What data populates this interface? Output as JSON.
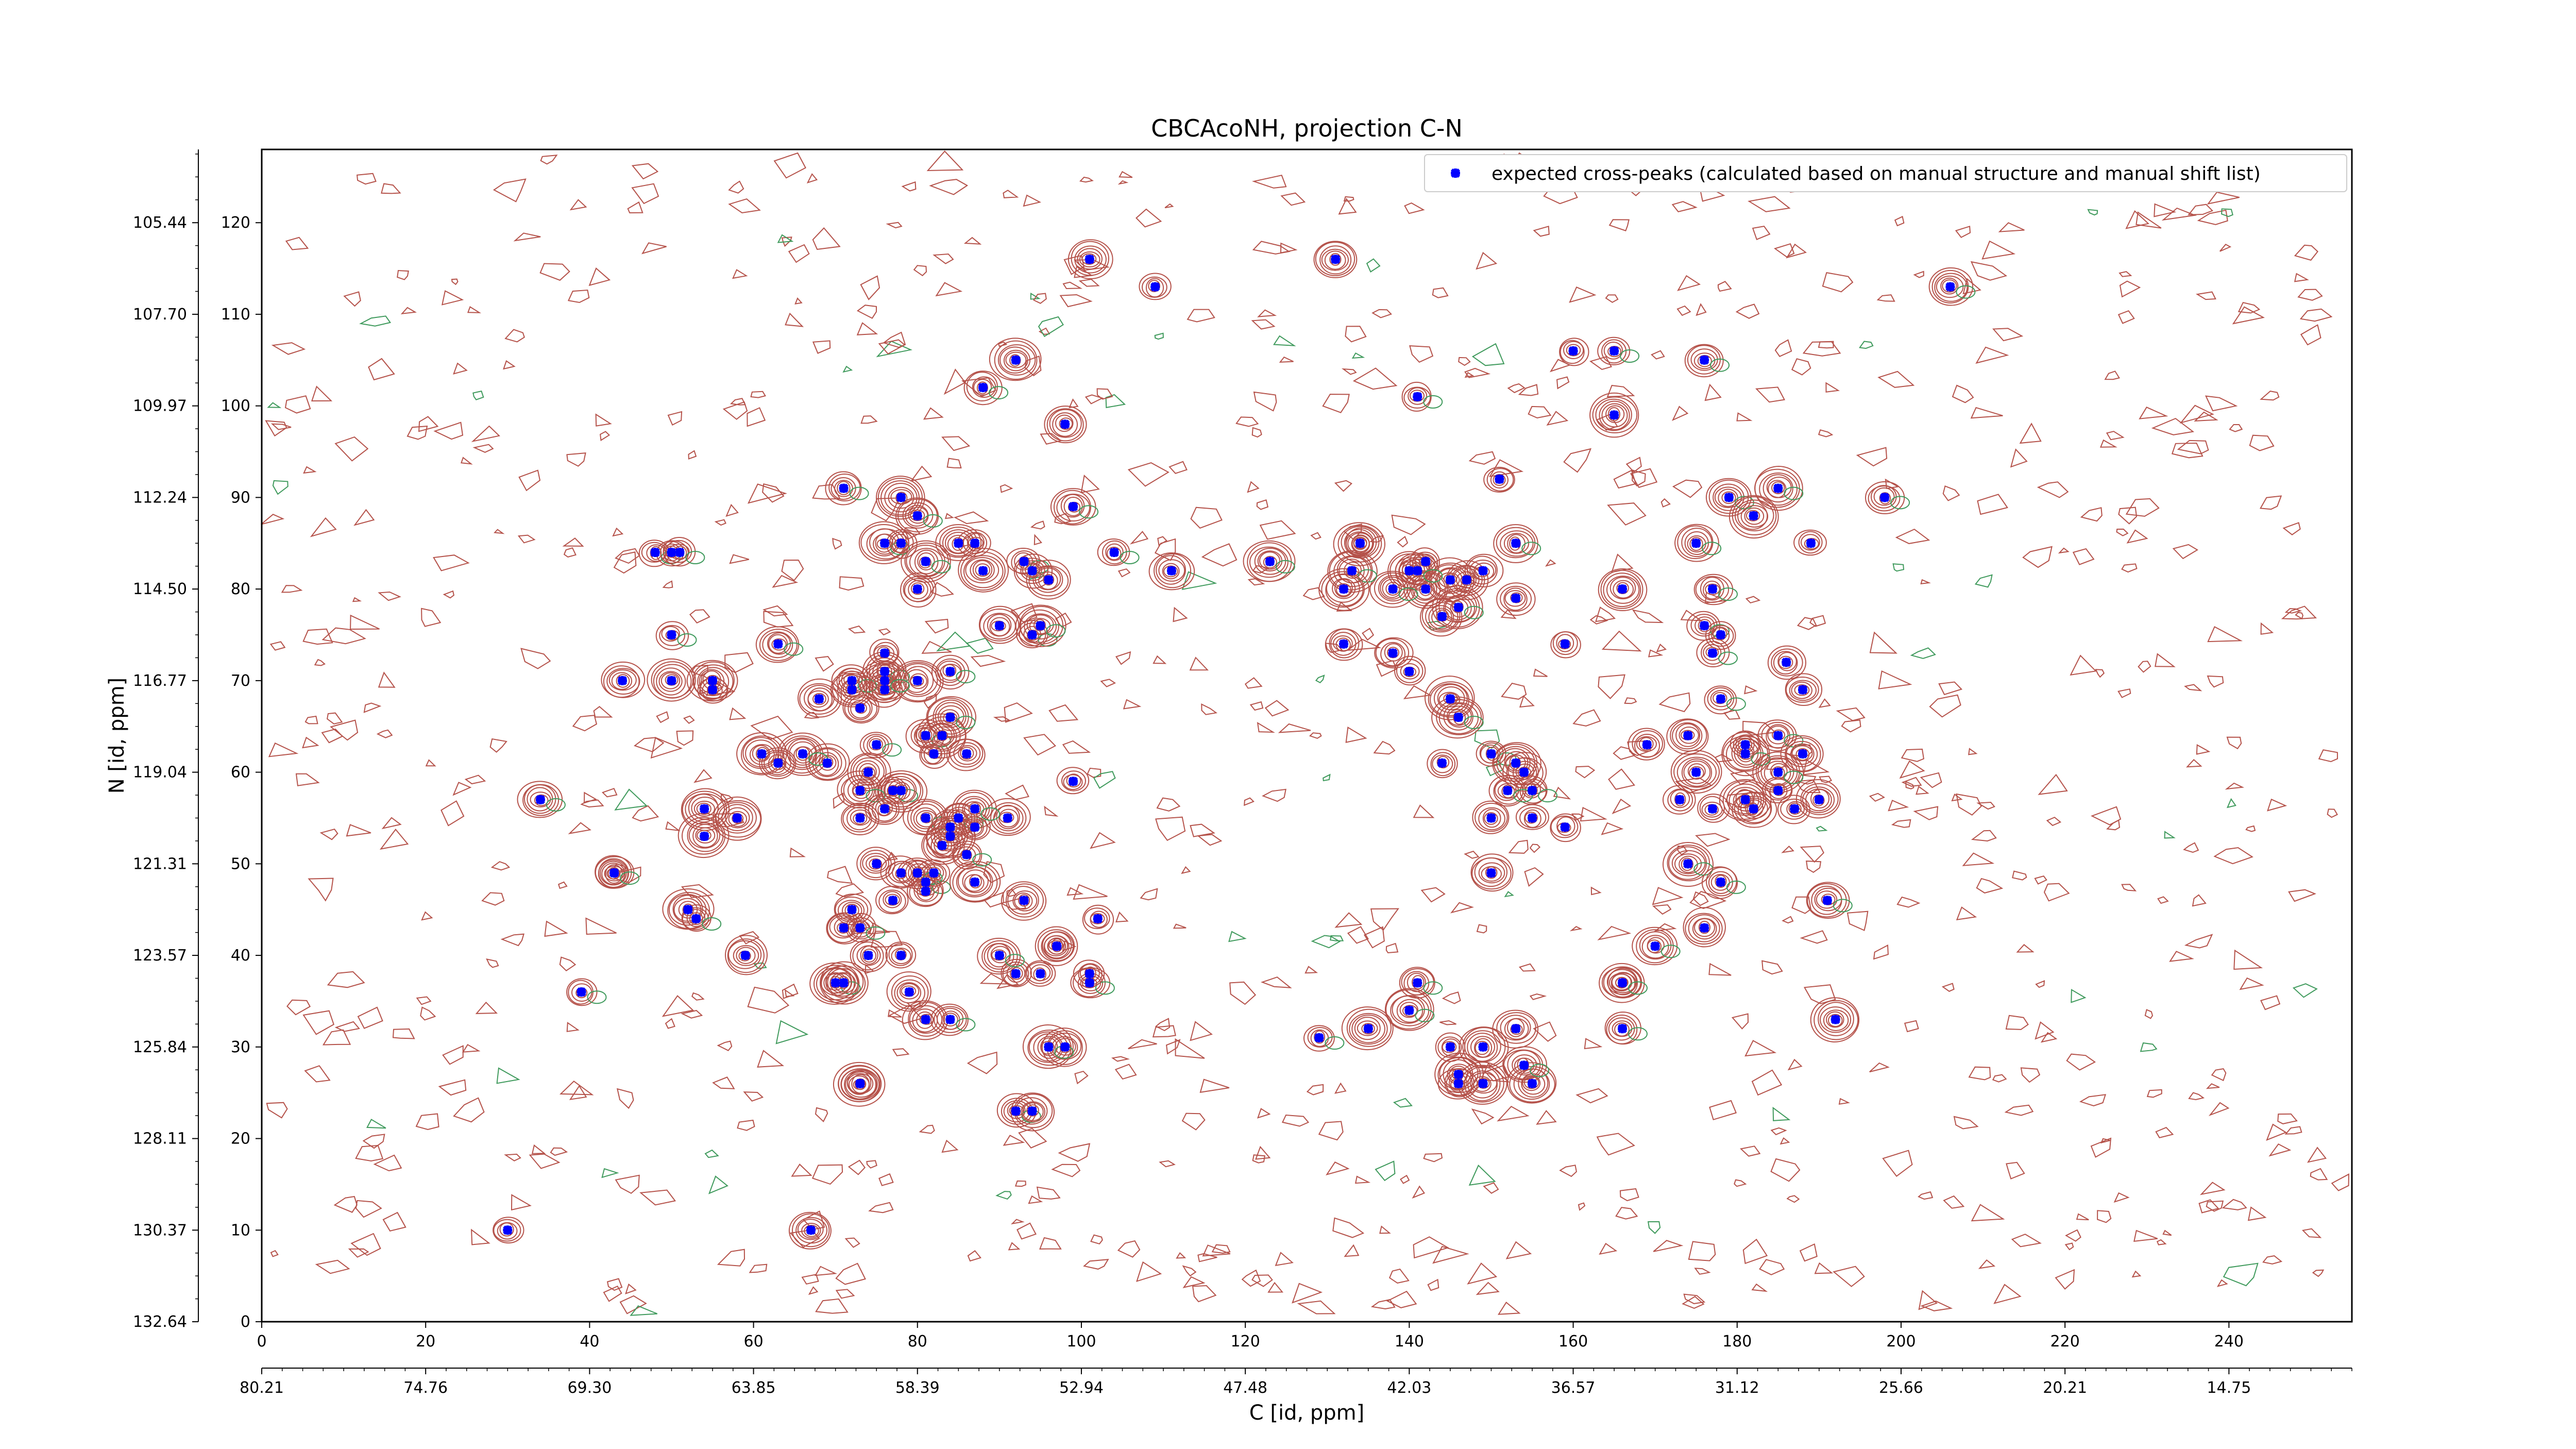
{
  "chart_data": {
    "type": "scatter",
    "title": "CBCAcoNH, projection C-N",
    "xlabel": "C [id, ppm]",
    "ylabel": "N [id, ppm]",
    "xlim": [
      0,
      255
    ],
    "ylim": [
      0,
      128
    ],
    "x_index_ticks": [
      0,
      20,
      40,
      60,
      80,
      100,
      120,
      140,
      160,
      180,
      200,
      220,
      240
    ],
    "x_ppm_ticks": [
      "80.21",
      "74.76",
      "69.30",
      "63.85",
      "58.39",
      "52.94",
      "47.48",
      "42.03",
      "36.57",
      "31.12",
      "25.66",
      "20.21",
      "14.75"
    ],
    "y_index_ticks": [
      0,
      10,
      20,
      30,
      40,
      50,
      60,
      70,
      80,
      90,
      100,
      110,
      120
    ],
    "y_ppm_ticks": [
      "132.64",
      "130.37",
      "128.11",
      "125.84",
      "123.57",
      "121.31",
      "119.04",
      "116.77",
      "114.50",
      "112.24",
      "109.97",
      "107.70",
      "105.44"
    ],
    "grid": false,
    "legend_position": "top-right",
    "contour_colors": {
      "positive": "#b5524a",
      "negative": "#3f9a5c"
    },
    "series": [
      {
        "name": "expected cross-peaks (calculated based on manual structure and manual shift list)",
        "color": "#0000ff",
        "x": [
          101,
          109,
          131,
          206,
          92,
          88,
          98,
          165,
          141,
          165,
          176,
          71,
          78,
          76,
          78,
          48,
          50,
          51,
          85,
          87,
          80,
          93,
          94,
          96,
          88,
          99,
          104,
          123,
          81,
          80,
          94,
          138,
          149,
          151,
          153,
          146,
          142,
          144,
          140,
          147,
          153,
          179,
          182,
          185,
          198,
          189,
          175,
          177,
          166,
          176,
          178,
          50,
          55,
          63,
          50,
          44,
          55,
          111,
          132,
          145,
          142,
          141,
          138,
          134,
          133,
          132,
          134,
          160,
          177,
          186,
          169,
          174,
          175,
          173,
          182,
          181,
          185,
          187,
          190,
          159,
          159,
          178,
          181,
          188,
          177,
          150,
          153,
          150,
          155,
          154,
          155,
          152,
          144,
          146,
          145,
          140,
          101,
          176,
          174,
          178,
          185,
          185,
          181,
          188,
          61,
          76,
          73,
          72,
          76,
          84,
          80,
          90,
          95,
          76,
          68,
          72,
          76,
          75,
          81,
          83,
          84,
          77,
          69,
          74,
          66,
          63,
          78,
          86,
          82,
          99,
          73,
          58,
          81,
          84,
          83,
          84,
          76,
          85,
          91,
          87,
          87,
          81,
          82,
          78,
          93,
          87,
          86,
          75,
          80,
          73,
          81,
          77,
          78,
          70,
          71,
          72,
          73,
          74,
          92,
          95,
          98,
          79,
          81,
          84,
          90,
          97,
          97,
          102,
          39,
          43,
          43,
          34,
          52,
          53,
          59,
          54,
          54,
          71,
          73,
          73,
          101,
          141,
          146,
          149,
          191,
          30,
          67,
          170,
          192,
          166,
          166,
          166,
          135,
          140,
          150,
          146,
          155,
          153,
          149,
          145,
          129,
          154,
          92,
          94,
          96
        ],
        "y": [
          116,
          113,
          116,
          113,
          105,
          102,
          98,
          106,
          101,
          99,
          105,
          91,
          90,
          85,
          85,
          84,
          84,
          84,
          85,
          85,
          80,
          83,
          82,
          81,
          82,
          89,
          84,
          83,
          83,
          88,
          75,
          73,
          82,
          92,
          85,
          78,
          83,
          77,
          82,
          81,
          79,
          90,
          88,
          91,
          90,
          85,
          85,
          80,
          80,
          76,
          75,
          75,
          70,
          74,
          70,
          70,
          69,
          82,
          74,
          81,
          80,
          82,
          80,
          85,
          82,
          80,
          85,
          106,
          73,
          72,
          63,
          64,
          60,
          57,
          56,
          57,
          64,
          56,
          57,
          54,
          74,
          68,
          62,
          62,
          56,
          62,
          61,
          55,
          58,
          60,
          55,
          58,
          61,
          66,
          68,
          71,
          37,
          43,
          50,
          48,
          58,
          60,
          63,
          69,
          62,
          71,
          67,
          69,
          73,
          71,
          70,
          76,
          76,
          69,
          68,
          70,
          70,
          63,
          64,
          64,
          66,
          58,
          61,
          60,
          62,
          61,
          58,
          62,
          62,
          59,
          58,
          55,
          55,
          54,
          52,
          53,
          56,
          55,
          55,
          54,
          56,
          48,
          49,
          49,
          46,
          48,
          51,
          50,
          49,
          55,
          47,
          46,
          40,
          37,
          43,
          45,
          43,
          40,
          38,
          38,
          30,
          36,
          33,
          33,
          40,
          41,
          41,
          44,
          36,
          49,
          49,
          57,
          45,
          44,
          40,
          53,
          56,
          37,
          26,
          26,
          38,
          37,
          27,
          26,
          46,
          10,
          10,
          41,
          33,
          37,
          37,
          32,
          32,
          34,
          49,
          26,
          26,
          32,
          30,
          30,
          31,
          28,
          23,
          23,
          30
        ],
        "marker": "x"
      }
    ]
  }
}
